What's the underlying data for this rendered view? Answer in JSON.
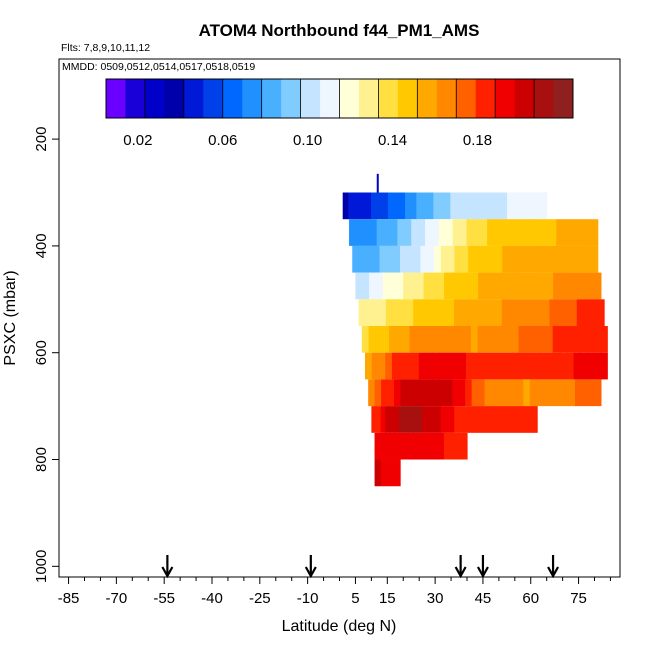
{
  "chart_data": {
    "type": "heatmap",
    "title": "ATOM4 Northbound f44_PM1_AMS",
    "flights_label": "Flts: 7,8,9,10,11,12",
    "dates_label": "MMDD: 0509,0512,0514,0517,0518,0519",
    "xlabel": "Latitude (deg N)",
    "ylabel": "PSXC (mbar)",
    "xlim": [
      -88,
      88
    ],
    "ylim": [
      1020,
      50
    ],
    "x_ticks": [
      -85,
      -70,
      -55,
      -40,
      -25,
      -10,
      5,
      15,
      30,
      45,
      60,
      75
    ],
    "x_tick_labels": [
      "-85",
      "-70",
      "-55",
      "-40",
      "-25",
      "-10",
      "5",
      "15",
      "30",
      "45",
      "60",
      "75"
    ],
    "y_ticks": [
      200,
      400,
      600,
      800,
      1000
    ],
    "y_tick_labels": [
      "200",
      "400",
      "600",
      "800",
      "1000"
    ],
    "colorbar": {
      "min": 0.005,
      "max": 0.225,
      "tick_values": [
        0.02,
        0.06,
        0.1,
        0.14,
        0.18
      ],
      "tick_labels": [
        "0.02",
        "0.06",
        "0.10",
        "0.14",
        "0.18"
      ],
      "colors": [
        "#6a00ff",
        "#1a00d8",
        "#0000c8",
        "#0000aa",
        "#0018d8",
        "#0040e8",
        "#0068ff",
        "#2090ff",
        "#48b0ff",
        "#80ccff",
        "#c4e4ff",
        "#eef6ff",
        "#ffffd8",
        "#fff090",
        "#ffe040",
        "#ffc800",
        "#ffa800",
        "#ff8800",
        "#ff6000",
        "#ff2000",
        "#f00000",
        "#cc0000",
        "#a81010",
        "#902020"
      ]
    },
    "arrows_latitude": [
      -54,
      -9,
      38,
      45,
      67
    ],
    "bands": [
      {
        "p_top": 300,
        "p_bottom": 350,
        "lat_start": 1,
        "lat_end": 65,
        "values": [
          0.04,
          0.05,
          0.06,
          0.075,
          0.09,
          0.1,
          0.1,
          0.105,
          0.11
        ]
      },
      {
        "p_top": 350,
        "p_bottom": 400,
        "lat_start": 3,
        "lat_end": 81,
        "values": [
          0.07,
          0.08,
          0.095,
          0.11,
          0.13,
          0.145,
          0.15,
          0.15,
          0.155
        ]
      },
      {
        "p_top": 400,
        "p_bottom": 450,
        "lat_start": 4,
        "lat_end": 81,
        "values": [
          0.08,
          0.09,
          0.1,
          0.12,
          0.14,
          0.15,
          0.155,
          0.155,
          0.16
        ]
      },
      {
        "p_top": 450,
        "p_bottom": 500,
        "lat_start": 5,
        "lat_end": 82,
        "values": [
          0.1,
          0.115,
          0.13,
          0.14,
          0.15,
          0.155,
          0.155,
          0.16,
          0.165
        ]
      },
      {
        "p_top": 500,
        "p_bottom": 550,
        "lat_start": 6,
        "lat_end": 83,
        "values": [
          0.125,
          0.135,
          0.145,
          0.15,
          0.155,
          0.16,
          0.165,
          0.17,
          0.18
        ]
      },
      {
        "p_top": 550,
        "p_bottom": 600,
        "lat_start": 7,
        "lat_end": 84,
        "values": [
          0.14,
          0.155,
          0.165,
          0.165,
          0.16,
          0.165,
          0.175,
          0.18,
          0.185
        ]
      },
      {
        "p_top": 600,
        "p_bottom": 650,
        "lat_start": 8,
        "lat_end": 84,
        "values": [
          0.155,
          0.18,
          0.19,
          0.195,
          0.185,
          0.18,
          0.18,
          0.185,
          0.19
        ]
      },
      {
        "p_top": 650,
        "p_bottom": 700,
        "lat_start": 9,
        "lat_end": 82,
        "values": [
          0.165,
          0.195,
          0.205,
          0.205,
          0.175,
          0.165,
          0.16,
          0.165,
          0.17
        ]
      },
      {
        "p_top": 700,
        "p_bottom": 750,
        "lat_start": 10,
        "lat_end": 62,
        "values": [
          0.18,
          0.205,
          0.21,
          0.205,
          0.19,
          0.185,
          0.185,
          0.18,
          0.185
        ]
      },
      {
        "p_top": 750,
        "p_bottom": 800,
        "lat_start": 11,
        "lat_end": 40,
        "values": [
          0.19,
          0.195,
          0.195,
          0.19,
          0.19,
          0.185
        ]
      },
      {
        "p_top": 800,
        "p_bottom": 850,
        "lat_start": 11,
        "lat_end": 19,
        "values": [
          0.2,
          0.195,
          0.19
        ]
      }
    ],
    "profile_marks": [
      {
        "lat": 12,
        "p_top": 265,
        "p_bottom": 300,
        "value": 0.03
      }
    ]
  }
}
